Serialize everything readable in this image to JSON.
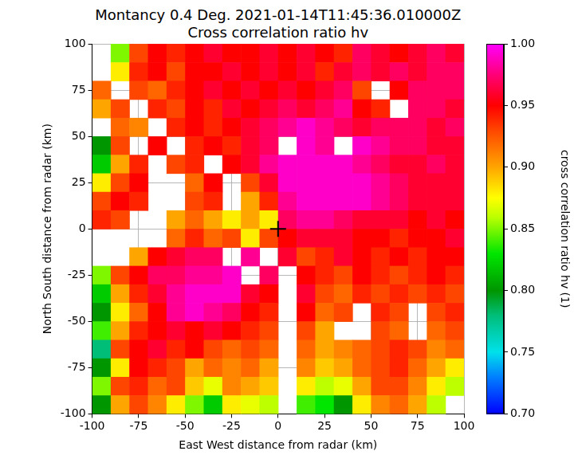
{
  "chart_data": {
    "type": "heatmap",
    "title": "Montancy 0.4 Deg. 2021-01-14T11:45:36.010000Z",
    "subtitle": "Cross correlation ratio hv",
    "x_label": "East West distance from radar (km)",
    "y_label": "North South distance from radar (km)",
    "xlim": [
      -100,
      100
    ],
    "ylim": [
      -100,
      100
    ],
    "xticks": [
      -100,
      -75,
      -50,
      -25,
      0,
      25,
      50,
      75,
      100
    ],
    "yticks": [
      -100,
      -75,
      -50,
      -25,
      0,
      25,
      50,
      75,
      100
    ],
    "grid": true,
    "x_edges": [
      -100,
      -90,
      -80,
      -70,
      -60,
      -50,
      -40,
      -30,
      -20,
      -10,
      0,
      10,
      20,
      30,
      40,
      50,
      60,
      70,
      80,
      90,
      100
    ],
    "y_edges": [
      100,
      90,
      80,
      70,
      60,
      50,
      40,
      30,
      20,
      10,
      0,
      -10,
      -20,
      -30,
      -40,
      -50,
      -60,
      -70,
      -80,
      -90,
      -100
    ],
    "cells": [
      [
        null,
        0.85,
        0.93,
        0.95,
        0.94,
        0.95,
        0.96,
        0.95,
        0.95,
        0.96,
        0.95,
        0.96,
        0.95,
        0.94,
        0.97,
        0.96,
        0.95,
        0.96,
        0.97,
        0.96
      ],
      [
        null,
        0.88,
        0.94,
        0.95,
        0.93,
        0.95,
        0.95,
        0.96,
        0.95,
        0.96,
        0.95,
        0.96,
        0.94,
        0.96,
        0.97,
        0.96,
        0.97,
        0.96,
        0.97,
        0.97
      ],
      [
        0.92,
        null,
        0.93,
        0.92,
        0.94,
        0.95,
        0.96,
        0.95,
        0.96,
        0.95,
        0.96,
        0.95,
        0.96,
        0.97,
        0.93,
        null,
        0.95,
        0.97,
        0.97,
        0.97
      ],
      [
        0.9,
        0.93,
        null,
        0.94,
        0.93,
        0.95,
        0.94,
        0.96,
        0.95,
        0.96,
        0.97,
        0.96,
        0.97,
        0.98,
        0.95,
        0.94,
        null,
        0.97,
        0.97,
        0.96
      ],
      [
        null,
        0.92,
        0.91,
        null,
        0.94,
        0.95,
        0.94,
        0.95,
        0.96,
        0.97,
        0.98,
        0.99,
        0.98,
        0.97,
        0.96,
        0.97,
        0.97,
        0.97,
        0.96,
        0.97
      ],
      [
        0.8,
        0.93,
        null,
        0.95,
        null,
        0.94,
        0.95,
        0.94,
        0.96,
        0.97,
        null,
        0.99,
        0.98,
        null,
        0.99,
        0.98,
        0.97,
        0.97,
        0.96,
        0.96
      ],
      [
        0.82,
        0.9,
        0.94,
        null,
        0.93,
        0.94,
        null,
        0.95,
        0.96,
        0.98,
        0.99,
        0.99,
        0.99,
        0.99,
        0.98,
        0.97,
        0.96,
        0.96,
        0.97,
        0.96
      ],
      [
        0.88,
        0.93,
        0.95,
        null,
        null,
        0.92,
        0.95,
        null,
        0.93,
        0.96,
        0.99,
        0.99,
        0.99,
        0.99,
        0.99,
        0.98,
        0.97,
        0.96,
        0.96,
        0.96
      ],
      [
        0.93,
        0.95,
        0.94,
        null,
        null,
        0.93,
        0.94,
        null,
        0.9,
        0.94,
        0.98,
        0.99,
        0.99,
        0.99,
        0.99,
        0.98,
        0.97,
        0.96,
        0.96,
        0.96
      ],
      [
        0.94,
        0.93,
        null,
        null,
        0.9,
        0.92,
        0.9,
        0.88,
        0.9,
        0.88,
        0.97,
        0.98,
        0.98,
        0.97,
        0.96,
        0.96,
        0.96,
        0.95,
        0.96,
        0.95
      ],
      [
        null,
        null,
        null,
        null,
        0.92,
        0.94,
        0.92,
        0.93,
        0.88,
        0.93,
        0.95,
        0.96,
        0.96,
        0.96,
        0.95,
        0.95,
        0.94,
        0.95,
        0.95,
        0.96
      ],
      [
        null,
        null,
        0.9,
        0.95,
        0.96,
        0.97,
        0.97,
        null,
        0.98,
        null,
        0.96,
        0.93,
        0.94,
        0.96,
        0.95,
        0.94,
        0.95,
        0.94,
        0.95,
        0.95
      ],
      [
        0.85,
        0.93,
        0.95,
        0.97,
        0.97,
        0.98,
        0.98,
        0.99,
        null,
        0.97,
        null,
        0.95,
        0.94,
        0.93,
        0.95,
        0.94,
        0.93,
        0.94,
        0.95,
        0.94
      ],
      [
        0.82,
        0.9,
        0.94,
        0.96,
        0.98,
        0.99,
        0.99,
        0.99,
        0.96,
        0.95,
        null,
        0.96,
        0.93,
        0.92,
        0.94,
        0.93,
        0.94,
        0.93,
        0.94,
        0.93
      ],
      [
        0.8,
        0.88,
        0.92,
        0.95,
        0.98,
        0.99,
        0.98,
        0.97,
        0.95,
        0.94,
        null,
        0.95,
        0.92,
        0.93,
        null,
        0.94,
        0.93,
        null,
        0.93,
        0.94
      ],
      [
        0.84,
        0.9,
        0.94,
        0.95,
        0.96,
        0.95,
        0.96,
        0.95,
        0.94,
        0.93,
        null,
        0.93,
        0.9,
        null,
        null,
        0.93,
        0.92,
        null,
        0.92,
        0.93
      ],
      [
        0.78,
        0.93,
        0.95,
        0.96,
        0.94,
        0.95,
        0.93,
        0.92,
        0.93,
        0.92,
        null,
        0.92,
        0.9,
        0.91,
        0.92,
        0.93,
        0.94,
        0.93,
        0.91,
        0.92
      ],
      [
        0.8,
        0.88,
        0.95,
        0.94,
        0.93,
        0.9,
        0.92,
        0.91,
        0.92,
        0.9,
        null,
        0.91,
        0.89,
        0.9,
        0.92,
        0.93,
        0.94,
        0.92,
        0.9,
        0.88
      ],
      [
        0.85,
        0.93,
        0.94,
        0.92,
        0.93,
        0.89,
        0.87,
        0.91,
        0.9,
        0.89,
        null,
        0.88,
        0.86,
        0.87,
        0.9,
        0.93,
        0.93,
        0.91,
        0.88,
        0.86
      ],
      [
        0.8,
        0.9,
        0.93,
        0.91,
        0.88,
        0.85,
        0.82,
        0.88,
        0.87,
        0.86,
        null,
        0.84,
        0.83,
        0.8,
        0.88,
        0.91,
        0.92,
        0.9,
        0.86,
        null
      ]
    ],
    "colorbar": {
      "label": "cross correlation ratio hv (1)",
      "range": [
        0.7,
        1.0
      ],
      "ticks": [
        {
          "value": 0.7,
          "label": "0.70"
        },
        {
          "value": 0.75,
          "label": "0.75"
        },
        {
          "value": 0.8,
          "label": "0.80"
        },
        {
          "value": 0.85,
          "label": "0.85"
        },
        {
          "value": 0.9,
          "label": "0.90"
        },
        {
          "value": 0.95,
          "label": "0.95"
        },
        {
          "value": 1.0,
          "label": "1.00"
        }
      ]
    },
    "radar": {
      "x": 0,
      "y": 0,
      "marker": "+"
    }
  }
}
